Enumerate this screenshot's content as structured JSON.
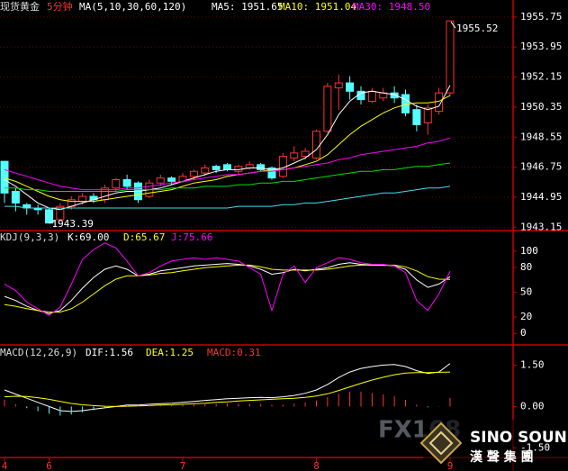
{
  "chart_data": [
    {
      "type": "candlestick",
      "title": "现货黄金",
      "period": "5分钟",
      "indicator": "MA(5,10,30,60,120)",
      "categories": [
        "4",
        null,
        null,
        null,
        "6",
        null,
        null,
        null,
        null,
        null,
        null,
        null,
        null,
        null,
        null,
        null,
        "7",
        null,
        null,
        null,
        null,
        null,
        null,
        null,
        null,
        null,
        null,
        null,
        "8",
        null,
        null,
        null,
        null,
        null,
        null,
        null,
        null,
        null,
        null,
        null,
        "9"
      ],
      "open": [
        1947.1,
        1945.3,
        1944.5,
        1944.3,
        1944.2,
        1943.6,
        1944.4,
        1944.7,
        1945.0,
        1944.8,
        1945.5,
        1946.0,
        1945.8,
        1945.0,
        1945.8,
        1946.1,
        1945.9,
        1946.2,
        1946.4,
        1946.8,
        1946.9,
        1946.5,
        1946.7,
        1946.9,
        1946.7,
        1946.2,
        1947.3,
        1947.4,
        1947.3,
        1948.9,
        1951.5,
        1951.8,
        1951.3,
        1950.7,
        1950.9,
        1951.2,
        1951.1,
        1950.2,
        1949.4,
        1950.1,
        1951.2
      ],
      "high": [
        1947.1,
        1945.5,
        1944.6,
        1944.5,
        1944.3,
        1944.6,
        1945.0,
        1945.2,
        1945.2,
        1945.7,
        1946.1,
        1946.3,
        1945.9,
        1946.0,
        1946.3,
        1946.2,
        1946.4,
        1946.6,
        1946.9,
        1946.9,
        1947.0,
        1946.9,
        1947.1,
        1947.0,
        1946.8,
        1947.6,
        1948.0,
        1947.9,
        1949.0,
        1951.8,
        1952.3,
        1952.2,
        1951.6,
        1951.5,
        1951.5,
        1951.6,
        1951.4,
        1950.5,
        1950.5,
        1951.5,
        1955.52
      ],
      "low": [
        1944.6,
        1944.1,
        1943.9,
        1943.9,
        1943.39,
        1943.5,
        1944.2,
        1944.5,
        1944.6,
        1944.6,
        1945.3,
        1945.4,
        1944.6,
        1944.9,
        1945.6,
        1945.7,
        1945.8,
        1946.0,
        1946.2,
        1946.4,
        1946.5,
        1946.3,
        1946.6,
        1946.5,
        1946.0,
        1946.1,
        1947.1,
        1947.2,
        1947.2,
        1948.8,
        1950.2,
        1950.8,
        1950.5,
        1950.6,
        1950.7,
        1950.6,
        1949.8,
        1948.9,
        1948.7,
        1949.9,
        1951.0
      ],
      "close": [
        1945.2,
        1944.6,
        1944.3,
        1944.2,
        1943.4,
        1944.4,
        1944.8,
        1945.0,
        1944.8,
        1945.5,
        1946.0,
        1945.6,
        1944.8,
        1945.8,
        1946.1,
        1945.9,
        1946.2,
        1946.5,
        1946.7,
        1946.6,
        1946.6,
        1946.8,
        1946.9,
        1946.6,
        1946.1,
        1947.4,
        1947.6,
        1947.7,
        1948.9,
        1951.6,
        1951.8,
        1951.3,
        1950.8,
        1951.3,
        1951.2,
        1950.9,
        1950.0,
        1949.3,
        1950.3,
        1951.2,
        1955.52
      ],
      "up_color": "#ff3232",
      "down_color": "#54ffff",
      "series": [
        {
          "name": "MA5: 1951.65",
          "color": "#ffffff",
          "values": [
            1946.0,
            1945.6,
            1945.1,
            1944.6,
            1944.3,
            1944.2,
            1944.4,
            1944.6,
            1944.8,
            1945.0,
            1945.2,
            1945.3,
            1945.3,
            1945.4,
            1945.5,
            1945.7,
            1945.9,
            1946.1,
            1946.3,
            1946.5,
            1946.6,
            1946.6,
            1946.7,
            1946.7,
            1946.6,
            1946.7,
            1947.0,
            1947.3,
            1947.8,
            1948.7,
            1949.9,
            1950.7,
            1951.2,
            1951.3,
            1951.2,
            1951.1,
            1950.8,
            1950.4,
            1950.2,
            1950.4,
            1951.65
          ]
        },
        {
          "name": "MA10: 1951.04",
          "color": "#ffff00",
          "values": [
            1946.1,
            1945.9,
            1945.6,
            1945.3,
            1945.0,
            1944.8,
            1944.7,
            1944.7,
            1944.7,
            1944.8,
            1944.9,
            1945.0,
            1945.1,
            1945.2,
            1945.3,
            1945.4,
            1945.6,
            1945.8,
            1945.9,
            1946.0,
            1946.2,
            1946.3,
            1946.4,
            1946.5,
            1946.6,
            1946.6,
            1946.7,
            1946.9,
            1947.1,
            1947.5,
            1948.1,
            1948.7,
            1949.2,
            1949.6,
            1950.0,
            1950.3,
            1950.5,
            1950.6,
            1950.6,
            1950.7,
            1951.04
          ]
        },
        {
          "name": "MA30: 1948.50",
          "color": "#ff00ff",
          "values": [
            1946.6,
            1946.4,
            1946.2,
            1946.0,
            1945.8,
            1945.6,
            1945.5,
            1945.4,
            1945.4,
            1945.4,
            1945.4,
            1945.5,
            1945.5,
            1945.6,
            1945.7,
            1945.8,
            1945.9,
            1946.0,
            1946.1,
            1946.2,
            1946.3,
            1946.3,
            1946.4,
            1946.5,
            1946.5,
            1946.6,
            1946.7,
            1946.8,
            1946.9,
            1947.0,
            1947.2,
            1947.3,
            1947.5,
            1947.6,
            1947.7,
            1947.8,
            1947.9,
            1948.0,
            1948.2,
            1948.3,
            1948.5
          ]
        },
        {
          "color": "#00e000",
          "values": [
            1945.5,
            1945.5,
            1945.4,
            1945.4,
            1945.3,
            1945.3,
            1945.3,
            1945.3,
            1945.3,
            1945.3,
            1945.3,
            1945.4,
            1945.4,
            1945.4,
            1945.4,
            1945.5,
            1945.5,
            1945.5,
            1945.6,
            1945.6,
            1945.6,
            1945.7,
            1945.7,
            1945.8,
            1945.8,
            1945.9,
            1945.9,
            1946.0,
            1946.1,
            1946.2,
            1946.3,
            1946.4,
            1946.5,
            1946.5,
            1946.6,
            1946.6,
            1946.7,
            1946.8,
            1946.8,
            1946.9,
            1947.0
          ]
        },
        {
          "color": "#40e0f0",
          "values": [
            1944.4,
            1944.4,
            1944.3,
            1944.3,
            1944.3,
            1944.3,
            1944.3,
            1944.3,
            1944.3,
            1944.3,
            1944.3,
            1944.3,
            1944.3,
            1944.3,
            1944.3,
            1944.3,
            1944.3,
            1944.3,
            1944.3,
            1944.3,
            1944.3,
            1944.4,
            1944.4,
            1944.4,
            1944.4,
            1944.5,
            1944.5,
            1944.6,
            1944.6,
            1944.7,
            1944.8,
            1944.9,
            1945.0,
            1945.1,
            1945.2,
            1945.2,
            1945.3,
            1945.4,
            1945.5,
            1945.5,
            1945.6
          ]
        }
      ],
      "annotations": [
        {
          "text": "1955.52"
        },
        {
          "text": "1943.39"
        }
      ],
      "ylim": [
        1942.95,
        1956.77
      ],
      "yticks": [
        1955.75,
        1953.95,
        1952.15,
        1950.35,
        1948.55,
        1946.75,
        1944.95,
        1943.15
      ],
      "grid": true
    },
    {
      "type": "line",
      "title": "KDJ(9,3,3)",
      "series": [
        {
          "name": "K:69.00",
          "color": "#ffffff",
          "values": [
            45,
            40,
            33,
            28,
            24,
            28,
            40,
            55,
            68,
            78,
            82,
            78,
            70,
            72,
            76,
            78,
            80,
            82,
            83,
            84,
            85,
            84,
            82,
            78,
            72,
            74,
            78,
            76,
            78,
            80,
            84,
            86,
            84,
            83,
            83,
            82,
            78,
            65,
            56,
            60,
            69
          ]
        },
        {
          "name": "D:65.67",
          "color": "#ffff00",
          "values": [
            35,
            33,
            30,
            28,
            26,
            26,
            30,
            38,
            48,
            58,
            66,
            70,
            70,
            71,
            73,
            74,
            76,
            78,
            80,
            81,
            82,
            83,
            83,
            81,
            78,
            77,
            77,
            77,
            77,
            78,
            80,
            82,
            83,
            83,
            83,
            83,
            81,
            76,
            69,
            66,
            65.67
          ]
        },
        {
          "name": "J:75.66",
          "color": "#ff00ff",
          "values": [
            60,
            52,
            38,
            30,
            22,
            32,
            60,
            90,
            102,
            110,
            104,
            88,
            70,
            74,
            82,
            88,
            90,
            92,
            90,
            92,
            90,
            88,
            80,
            72,
            28,
            72,
            82,
            62,
            80,
            86,
            92,
            90,
            86,
            84,
            84,
            82,
            74,
            40,
            28,
            48,
            75.66
          ]
        }
      ],
      "ylim": [
        -14,
        124
      ],
      "yticks": [
        100,
        80,
        50,
        20,
        0
      ],
      "grid": false
    },
    {
      "type": "line",
      "title": "MACD(12,26,9)",
      "series": [
        {
          "name": "DIF:1.56",
          "color": "#ffffff",
          "values": [
            0.6,
            0.45,
            0.3,
            0.15,
            0.0,
            -0.15,
            -0.18,
            -0.15,
            -0.1,
            -0.05,
            0.0,
            0.05,
            0.05,
            0.08,
            0.1,
            0.12,
            0.15,
            0.18,
            0.22,
            0.25,
            0.28,
            0.3,
            0.32,
            0.33,
            0.32,
            0.35,
            0.4,
            0.48,
            0.6,
            0.8,
            1.05,
            1.25,
            1.38,
            1.45,
            1.5,
            1.52,
            1.45,
            1.3,
            1.2,
            1.25,
            1.56
          ]
        },
        {
          "name": "DEA:1.25",
          "color": "#ffff00",
          "values": [
            0.35,
            0.37,
            0.36,
            0.32,
            0.26,
            0.18,
            0.11,
            0.06,
            0.03,
            0.01,
            0.0,
            0.01,
            0.02,
            0.03,
            0.05,
            0.06,
            0.08,
            0.1,
            0.12,
            0.15,
            0.17,
            0.2,
            0.22,
            0.24,
            0.26,
            0.28,
            0.3,
            0.33,
            0.38,
            0.46,
            0.58,
            0.71,
            0.84,
            0.96,
            1.06,
            1.15,
            1.21,
            1.23,
            1.23,
            1.24,
            1.25
          ]
        },
        {
          "name": "MACD:0.31",
          "color": "#ff3232",
          "negative_color": "#54ffff",
          "style": "bar",
          "values": [
            0.25,
            0.08,
            -0.06,
            -0.17,
            -0.26,
            -0.33,
            -0.29,
            -0.21,
            -0.13,
            -0.06,
            0,
            0.04,
            0.03,
            0.05,
            0.05,
            0.06,
            0.07,
            0.08,
            0.1,
            0.1,
            0.11,
            0.1,
            0.1,
            0.09,
            0.06,
            0.07,
            0.1,
            0.15,
            0.22,
            0.34,
            0.47,
            0.54,
            0.54,
            0.49,
            0.44,
            0.37,
            0.24,
            0.07,
            -0.03,
            0.01,
            0.31
          ]
        }
      ],
      "ylim": [
        -1.85,
        2.2
      ],
      "yticks": [
        {
          "value": 1.5,
          "label": "1.50"
        },
        {
          "value": 0,
          "label": "0.00"
        },
        {
          "value": -1.5,
          "label": "-1.50"
        }
      ],
      "grid": false
    }
  ],
  "watermark": {
    "brand": "FX168",
    "logo": "SINO SOUND",
    "logo_sub": "漢 聲 集 團"
  }
}
